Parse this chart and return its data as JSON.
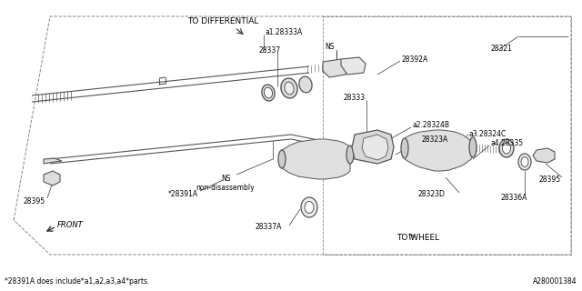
{
  "bg_color": "#ffffff",
  "fig_width": 6.4,
  "fig_height": 3.2,
  "dpi": 100,
  "footer_left": "*28391A does include*a1,a2,a3,a4*parts.",
  "footer_right": "A280001384",
  "labels": {
    "to_differential": "TO DIFFERENTIAL",
    "to_wheel": "TO WHEEL",
    "front": "FRONT",
    "ns_top": "NS",
    "ns_bottom": "NS\nnon-disassembly",
    "28337": "28337",
    "28337A": "28337A",
    "28391A": "*28391A",
    "28321": "28321",
    "28392A": "28392A",
    "28333": "28333",
    "28324B": "a2.28324B",
    "28323A": "28323A",
    "28324C": "a3.28324C",
    "28335": "a4.28335",
    "28323D": "28323D",
    "28336A": "28336A",
    "28395_left": "28395",
    "28395_right": "28395",
    "28333A": "a1.28333A"
  }
}
